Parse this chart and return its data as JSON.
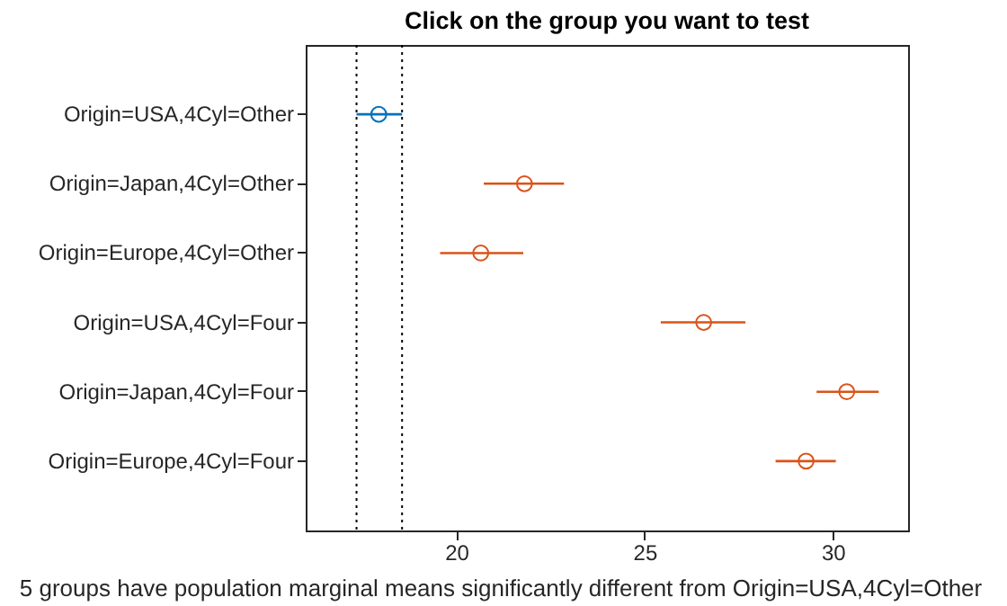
{
  "chart_data": {
    "type": "scatter",
    "orientation": "horizontal",
    "title": "Click on the group you want to test",
    "xlabel": "5 groups have population marginal means significantly different from Origin=USA,4Cyl=Other",
    "categories": [
      "Origin=USA,4Cyl=Other",
      "Origin=Japan,4Cyl=Other",
      "Origin=Europe,4Cyl=Other",
      "Origin=USA,4Cyl=Four",
      "Origin=Japan,4Cyl=Four",
      "Origin=Europe,4Cyl=Four"
    ],
    "series": [
      {
        "color": "#0072bd",
        "values": [
          17.94,
          null,
          null,
          null,
          null,
          null
        ],
        "errors": [
          [
            17.35,
            18.56
          ],
          null,
          null,
          null,
          null,
          null
        ]
      },
      {
        "color": "#d95319",
        "values": [
          null,
          21.81,
          20.65,
          26.57,
          30.37,
          29.29
        ],
        "errors": [
          null,
          [
            20.73,
            22.86
          ],
          [
            19.57,
            21.78
          ],
          [
            25.43,
            27.68
          ],
          [
            29.57,
            31.22
          ],
          [
            28.48,
            30.08
          ]
        ]
      }
    ],
    "xlim": [
      16,
      32
    ],
    "xticks": [
      20,
      25,
      30
    ],
    "grid": false,
    "legend": false,
    "marker": "circle",
    "ref_lines": [
      {
        "axis": "x",
        "value": 17.35,
        "color": "#000000",
        "line_style": "dotted"
      },
      {
        "axis": "x",
        "value": 18.56,
        "color": "#000000",
        "line_style": "dotted"
      }
    ]
  }
}
